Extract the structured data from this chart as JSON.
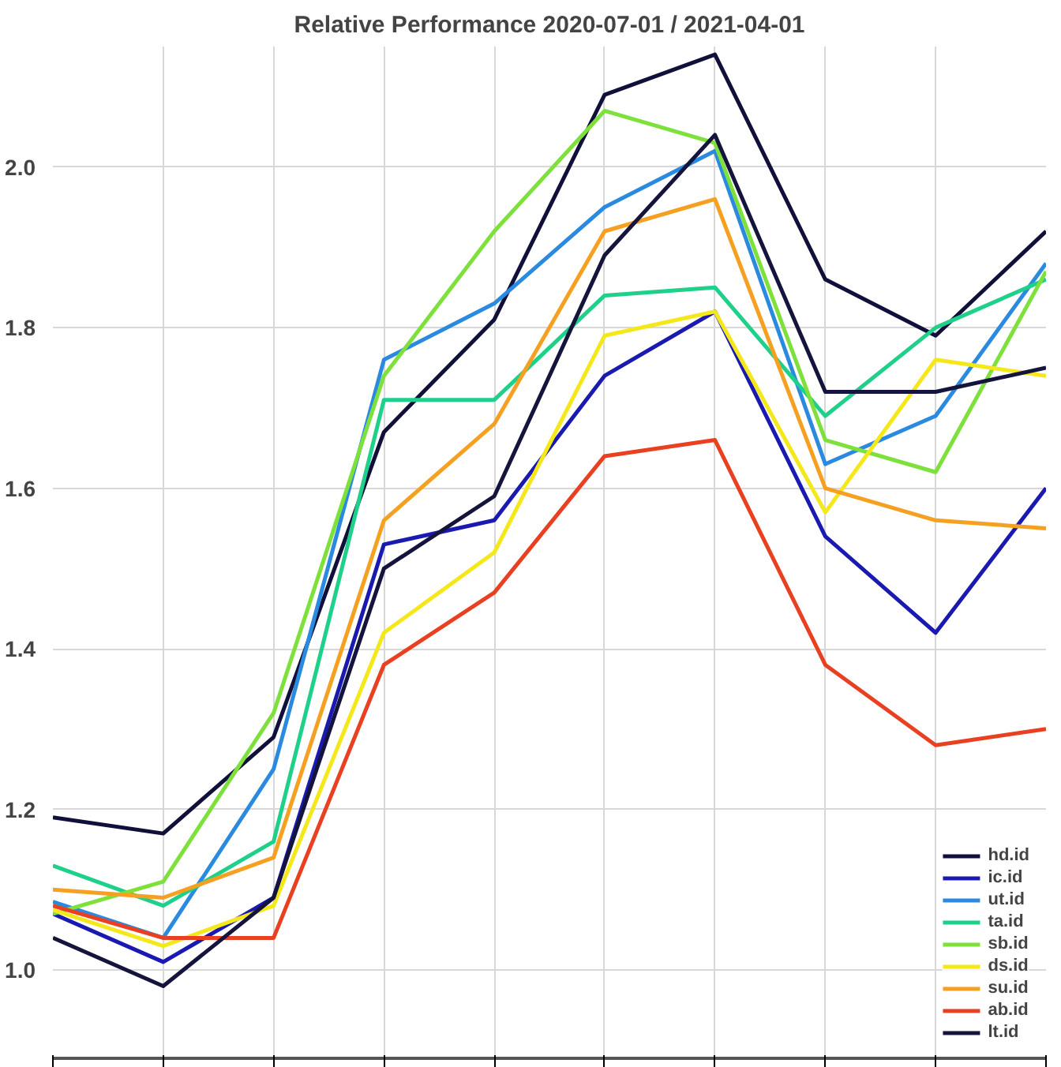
{
  "chart_data": {
    "type": "line",
    "title": "Relative Performance 2020-07-01 / 2021-04-01",
    "categories": [
      null,
      null,
      null,
      null,
      null,
      null,
      null,
      null,
      null,
      null
    ],
    "ylim": [
      0.89,
      2.15
    ],
    "yticks": [
      {
        "value": 1.0,
        "label": "1.0"
      },
      1.2,
      1.4,
      1.6,
      1.8,
      {
        "value": 2.0,
        "label": "2.0"
      }
    ],
    "grid": true,
    "legend": "bottom right",
    "tick_labels": "y",
    "marker": "none",
    "line_style": "solid",
    "series": [
      {
        "name": "hd.id",
        "color": "#10103a",
        "values": [
          1.19,
          1.17,
          1.29,
          1.67,
          1.81,
          2.09,
          2.14,
          1.86,
          1.79,
          1.92
        ]
      },
      {
        "name": "ic.id",
        "color": "#1a1ab0",
        "values": [
          1.07,
          1.01,
          1.09,
          1.53,
          1.56,
          1.74,
          1.82,
          1.54,
          1.42,
          1.6
        ]
      },
      {
        "name": "ut.id",
        "color": "#2a8ae0",
        "values": [
          1.085,
          1.04,
          1.25,
          1.76,
          1.83,
          1.95,
          2.02,
          1.63,
          1.69,
          1.88
        ]
      },
      {
        "name": "ta.id",
        "color": "#1fd08a",
        "values": [
          1.13,
          1.08,
          1.16,
          1.71,
          1.71,
          1.84,
          1.85,
          1.69,
          1.8,
          1.86
        ]
      },
      {
        "name": "sb.id",
        "color": "#7ee03a",
        "values": [
          1.07,
          1.11,
          1.32,
          1.74,
          1.92,
          2.07,
          2.03,
          1.66,
          1.62,
          1.87
        ]
      },
      {
        "name": "ds.id",
        "color": "#f5e81a",
        "values": [
          1.075,
          1.03,
          1.08,
          1.42,
          1.52,
          1.79,
          1.82,
          1.57,
          1.76,
          1.74
        ]
      },
      {
        "name": "su.id",
        "color": "#f5a020",
        "values": [
          1.1,
          1.09,
          1.14,
          1.56,
          1.68,
          1.92,
          1.96,
          1.6,
          1.56,
          1.55
        ]
      },
      {
        "name": "ab.id",
        "color": "#e84020",
        "values": [
          1.08,
          1.04,
          1.04,
          1.38,
          1.47,
          1.64,
          1.66,
          1.38,
          1.28,
          1.3
        ]
      },
      {
        "name": "lt.id",
        "color": "#14143c",
        "values": [
          1.04,
          0.98,
          1.09,
          1.5,
          1.59,
          1.89,
          2.04,
          1.72,
          1.72,
          1.75
        ]
      }
    ]
  }
}
